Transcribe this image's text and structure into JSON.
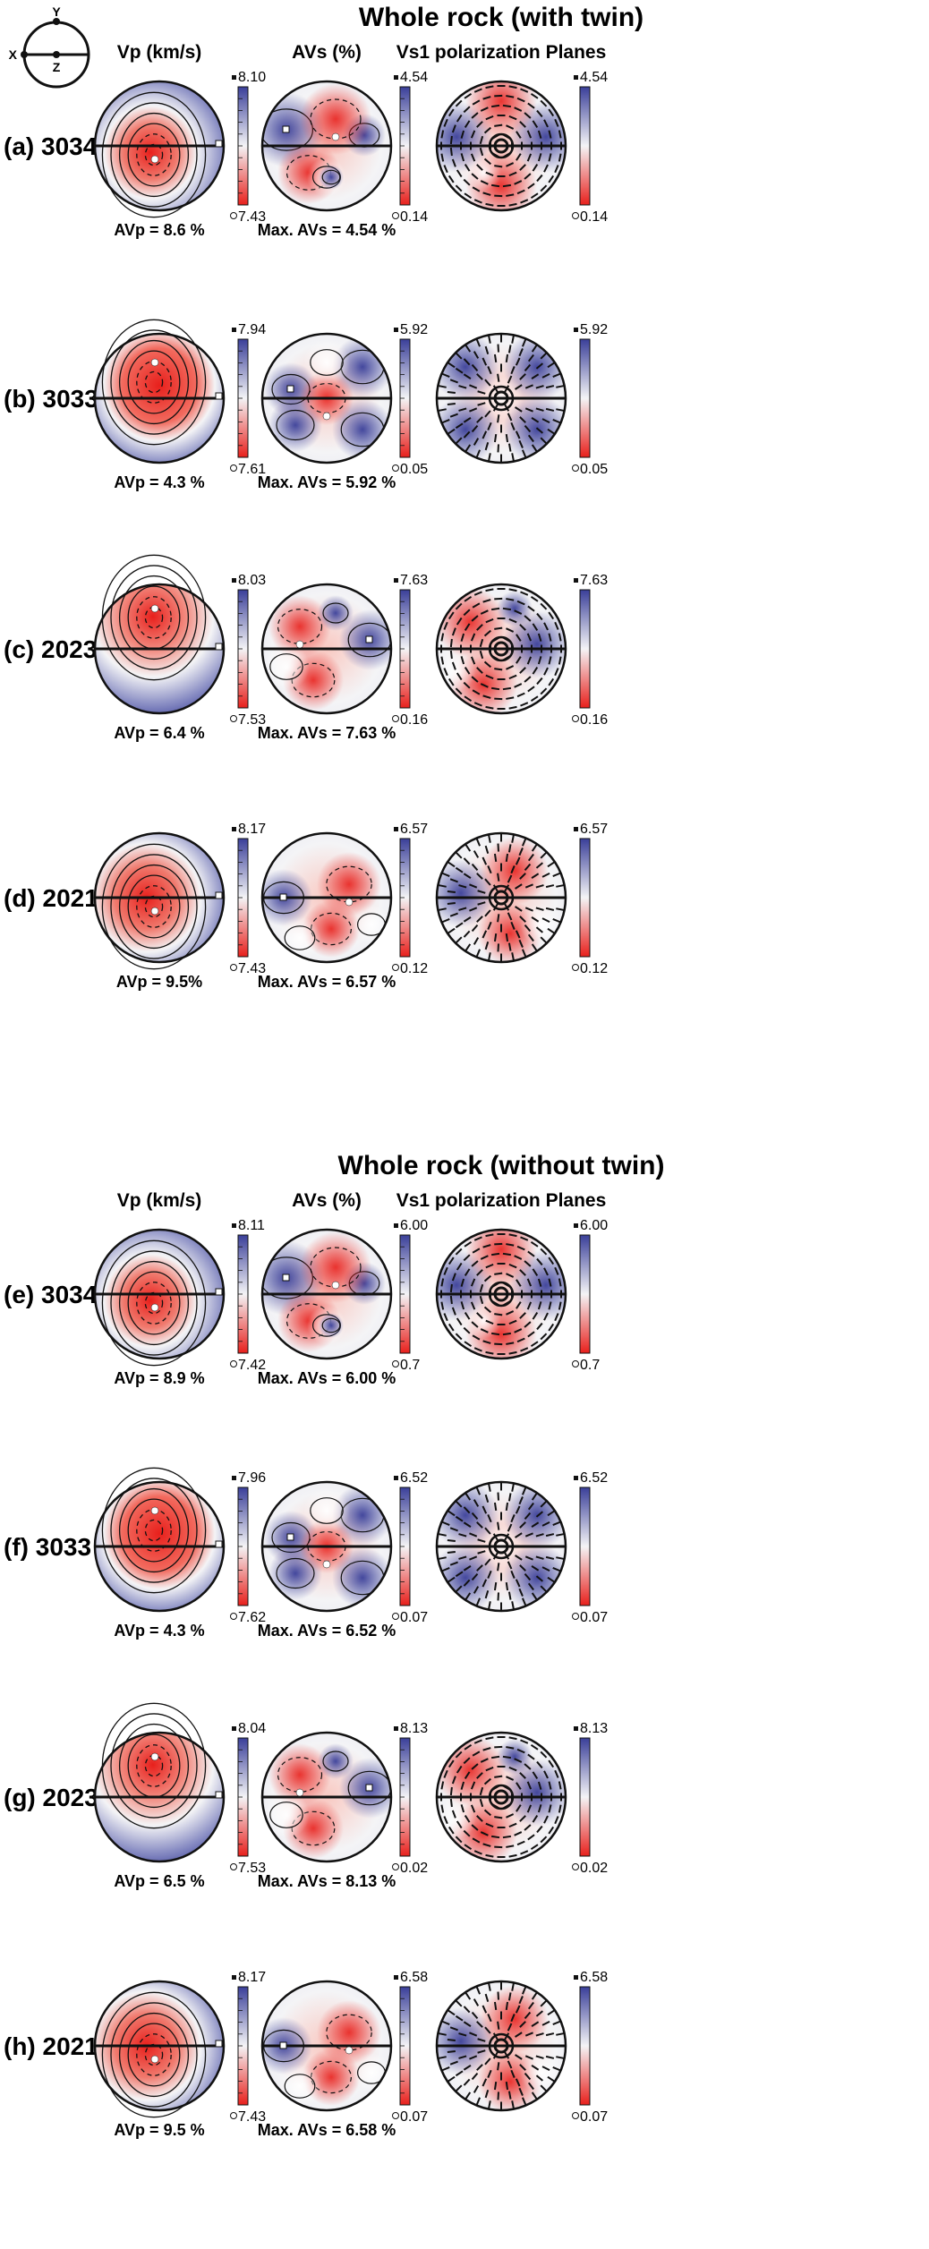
{
  "key_diagram": {
    "y_label": "Y",
    "x_label": "X",
    "z_label": "Z"
  },
  "colors": {
    "blue": "#3a3f99",
    "red": "#e8201c",
    "white": "#f4f4f6",
    "line": "#111111"
  },
  "sections": [
    {
      "title": "Whole rock (with twin)",
      "headers": {
        "vp": "Vp (km/s)",
        "avs": "AVs (%)",
        "vs1": "Vs1 polarization Planes"
      },
      "rows": [
        {
          "label": "(a) 3034",
          "vp_max": "8.10",
          "vp_min": "7.43",
          "avp": "AVp = 8.6 %",
          "avs_max": "4.54",
          "avs_min": "0.14",
          "max_avs": "Max. AVs = 4.54 %",
          "vs1_max": "4.54",
          "vs1_min": "0.14"
        },
        {
          "label": "(b) 3033",
          "vp_max": "7.94",
          "vp_min": "7.61",
          "avp": "AVp = 4.3 %",
          "avs_max": "5.92",
          "avs_min": "0.05",
          "max_avs": "Max. AVs = 5.92 %",
          "vs1_max": "5.92",
          "vs1_min": "0.05"
        },
        {
          "label": "(c) 2023",
          "vp_max": "8.03",
          "vp_min": "7.53",
          "avp": "AVp = 6.4 %",
          "avs_max": "7.63",
          "avs_min": "0.16",
          "max_avs": "Max. AVs = 7.63 %",
          "vs1_max": "7.63",
          "vs1_min": "0.16"
        },
        {
          "label": "(d) 2021",
          "vp_max": "8.17",
          "vp_min": "7.43",
          "avp": "AVp = 9.5%",
          "avs_max": "6.57",
          "avs_min": "0.12",
          "max_avs": "Max. AVs = 6.57 %",
          "vs1_max": "6.57",
          "vs1_min": "0.12"
        }
      ]
    },
    {
      "title": "Whole rock (without twin)",
      "headers": {
        "vp": "Vp (km/s)",
        "avs": "AVs (%)",
        "vs1": "Vs1 polarization Planes"
      },
      "rows": [
        {
          "label": "(e) 3034",
          "vp_max": "8.11",
          "vp_min": "7.42",
          "avp": "AVp = 8.9 %",
          "avs_max": "6.00",
          "avs_min": "0.7",
          "max_avs": "Max. AVs = 6.00 %",
          "vs1_max": "6.00",
          "vs1_min": "0.7"
        },
        {
          "label": "(f) 3033",
          "vp_max": "7.96",
          "vp_min": "7.62",
          "avp": "AVp = 4.3 %",
          "avs_max": "6.52",
          "avs_min": "0.07",
          "max_avs": "Max. AVs = 6.52 %",
          "vs1_max": "6.52",
          "vs1_min": "0.07"
        },
        {
          "label": "(g) 2023",
          "vp_max": "8.04",
          "vp_min": "7.53",
          "avp": "AVp = 6.5 %",
          "avs_max": "8.13",
          "avs_min": "0.02",
          "max_avs": "Max. AVs = 8.13 %",
          "vs1_max": "8.13",
          "vs1_min": "0.02"
        },
        {
          "label": "(h) 2021",
          "vp_max": "8.17",
          "vp_min": "7.43",
          "avp": "AVp = 9.5 %",
          "avs_max": "6.58",
          "avs_min": "0.07",
          "max_avs": "Max. AVs = 6.58 %",
          "vs1_max": "6.58",
          "vs1_min": "0.07"
        }
      ]
    }
  ]
}
